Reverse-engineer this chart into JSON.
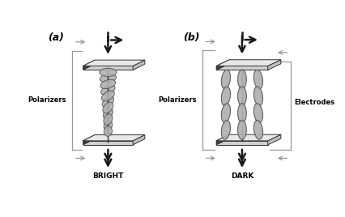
{
  "fig_width": 4.27,
  "fig_height": 2.68,
  "dpi": 100,
  "background": "#ffffff",
  "label_a": "(a)",
  "label_b": "(b)",
  "bright_label": "BRIGHT",
  "dark_label": "DARK",
  "polarizers_label": "Polarizers",
  "electrodes_label": "Electrodes",
  "plate_color": "#d0d0d0",
  "plate_edge": "#333333",
  "arrow_color": "#1a1a1a",
  "gray_arrow": "#999999",
  "ellipse_color": "#b0b0b0",
  "ellipse_edge": "#555555"
}
